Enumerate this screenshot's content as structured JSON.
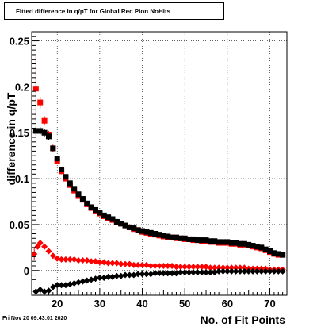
{
  "title": "Fitted difference in q/pT for Global Rec Pion NoHits",
  "footer": "Fri Nov 20 09:43:01 2020",
  "chart_data": {
    "type": "scatter",
    "title": "Fitted difference in q/pT for Global Rec Pion NoHits",
    "xlabel": "No. of Fit Points",
    "ylabel": "difference in q/pT",
    "xlim": [
      14,
      74
    ],
    "ylim": [
      -0.027,
      0.26
    ],
    "xticks": [
      20,
      30,
      40,
      50,
      60,
      70
    ],
    "xtick_labels": [
      "20",
      "30",
      "40",
      "50",
      "60",
      "70"
    ],
    "yticks": [
      0,
      0.05,
      0.1,
      0.15,
      0.2,
      0.25
    ],
    "ytick_labels": [
      "0",
      "0.05",
      "0.1",
      "0.15",
      "0.2",
      "0.25"
    ],
    "grid": true,
    "series": [
      {
        "color": "#ff0000",
        "marker": "square",
        "x": [
          15,
          16,
          17,
          18,
          19,
          20,
          21,
          22,
          23,
          24,
          25,
          26,
          27,
          28,
          29,
          30,
          31,
          32,
          33,
          34,
          35,
          36,
          37,
          38,
          39,
          40,
          41,
          42,
          43,
          44,
          45,
          46,
          47,
          48,
          49,
          50,
          51,
          52,
          53,
          54,
          55,
          56,
          57,
          58,
          59,
          60,
          61,
          62,
          63,
          64,
          65,
          66,
          67,
          68,
          69,
          70,
          71,
          72,
          73
        ],
        "y": [
          0.198,
          0.183,
          0.163,
          0.148,
          0.133,
          0.119,
          0.108,
          0.1,
          0.093,
          0.087,
          0.081,
          0.077,
          0.072,
          0.068,
          0.065,
          0.062,
          0.059,
          0.057,
          0.055,
          0.053,
          0.051,
          0.049,
          0.047,
          0.045,
          0.044,
          0.042,
          0.041,
          0.04,
          0.039,
          0.038,
          0.037,
          0.036,
          0.036,
          0.035,
          0.035,
          0.034,
          0.034,
          0.033,
          0.033,
          0.032,
          0.032,
          0.031,
          0.031,
          0.03,
          0.03,
          0.03,
          0.029,
          0.029,
          0.028,
          0.028,
          0.027,
          0.026,
          0.025,
          0.024,
          0.022,
          0.02,
          0.018,
          0.017,
          0.017
        ],
        "err": [
          0.035,
          0.006,
          0.005,
          0.004,
          0.004,
          0.003,
          0.003,
          0.003,
          0.003,
          0.003,
          0.002,
          0.002,
          0.002,
          0.002,
          0.002,
          0.002,
          0.002,
          0.002,
          0.002,
          0.002,
          0.002,
          0.002,
          0.002,
          0.002,
          0.002,
          0.002,
          0.002,
          0.002,
          0.002,
          0.002,
          0.002,
          0.002,
          0.002,
          0.002,
          0.002,
          0.002,
          0.002,
          0.002,
          0.002,
          0.002,
          0.002,
          0.002,
          0.002,
          0.002,
          0.002,
          0.002,
          0.002,
          0.002,
          0.002,
          0.002,
          0.002,
          0.002,
          0.002,
          0.002,
          0.002,
          0.002,
          0.002,
          0.002,
          0.002
        ]
      },
      {
        "color": "#000000",
        "marker": "square",
        "x": [
          15,
          16,
          17,
          18,
          19,
          20,
          21,
          22,
          23,
          24,
          25,
          26,
          27,
          28,
          29,
          30,
          31,
          32,
          33,
          34,
          35,
          36,
          37,
          38,
          39,
          40,
          41,
          42,
          43,
          44,
          45,
          46,
          47,
          48,
          49,
          50,
          51,
          52,
          53,
          54,
          55,
          56,
          57,
          58,
          59,
          60,
          61,
          62,
          63,
          64,
          65,
          66,
          67,
          68,
          69,
          70,
          71,
          72,
          73
        ],
        "y": [
          0.152,
          0.152,
          0.15,
          0.146,
          0.133,
          0.122,
          0.11,
          0.102,
          0.095,
          0.089,
          0.083,
          0.078,
          0.073,
          0.069,
          0.066,
          0.063,
          0.06,
          0.058,
          0.056,
          0.053,
          0.051,
          0.049,
          0.047,
          0.046,
          0.044,
          0.043,
          0.042,
          0.041,
          0.04,
          0.039,
          0.038,
          0.037,
          0.036,
          0.036,
          0.035,
          0.035,
          0.034,
          0.034,
          0.033,
          0.033,
          0.033,
          0.032,
          0.032,
          0.031,
          0.031,
          0.031,
          0.03,
          0.03,
          0.029,
          0.029,
          0.028,
          0.027,
          0.026,
          0.025,
          0.023,
          0.021,
          0.019,
          0.018,
          0.017
        ],
        "err": [
          0.005,
          0.004,
          0.004,
          0.004,
          0.003,
          0.003,
          0.003,
          0.003,
          0.003,
          0.002,
          0.002,
          0.002,
          0.002,
          0.002,
          0.002,
          0.002,
          0.002,
          0.002,
          0.002,
          0.002,
          0.002,
          0.002,
          0.002,
          0.002,
          0.002,
          0.002,
          0.002,
          0.002,
          0.002,
          0.002,
          0.002,
          0.002,
          0.002,
          0.002,
          0.002,
          0.002,
          0.002,
          0.002,
          0.002,
          0.002,
          0.002,
          0.002,
          0.002,
          0.002,
          0.002,
          0.002,
          0.002,
          0.002,
          0.002,
          0.002,
          0.002,
          0.002,
          0.002,
          0.002,
          0.002,
          0.002,
          0.002,
          0.002,
          0.002
        ]
      },
      {
        "color": "#ff0000",
        "marker": "diamond",
        "x": [
          14.6,
          15.4,
          16,
          17,
          18,
          19,
          20,
          21,
          22,
          23,
          24,
          25,
          26,
          27,
          28,
          29,
          30,
          31,
          32,
          33,
          34,
          35,
          36,
          37,
          38,
          39,
          40,
          41,
          42,
          43,
          44,
          45,
          46,
          47,
          48,
          49,
          50,
          51,
          52,
          53,
          54,
          55,
          56,
          57,
          58,
          59,
          60,
          61,
          62,
          63,
          64,
          65,
          66,
          67,
          68,
          69,
          70,
          71,
          72,
          73
        ],
        "y": [
          0.018,
          0.026,
          0.03,
          0.026,
          0.021,
          0.016,
          0.013,
          0.012,
          0.012,
          0.012,
          0.012,
          0.011,
          0.011,
          0.011,
          0.01,
          0.01,
          0.009,
          0.009,
          0.008,
          0.008,
          0.008,
          0.007,
          0.007,
          0.007,
          0.006,
          0.006,
          0.006,
          0.006,
          0.005,
          0.005,
          0.005,
          0.005,
          0.005,
          0.005,
          0.004,
          0.004,
          0.004,
          0.004,
          0.004,
          0.004,
          0.004,
          0.004,
          0.003,
          0.003,
          0.003,
          0.003,
          0.003,
          0.003,
          0.003,
          0.003,
          0.003,
          0.002,
          0.002,
          0.002,
          0.002,
          0.002,
          0.001,
          0.001,
          0.001,
          0.001
        ],
        "err": [
          0.006,
          0.003,
          0.003,
          0.002,
          0.002,
          0.001,
          0.001,
          0.001,
          0.001,
          0.001,
          0.001,
          0.001,
          0.001,
          0.001,
          0.001,
          0.001,
          0.001,
          0.001,
          0.001,
          0.001,
          0.001,
          0.001,
          0.001,
          0.001,
          0.001,
          0.001,
          0.001,
          0.001,
          0.001,
          0.001,
          0.001,
          0.001,
          0.001,
          0.001,
          0.001,
          0.001,
          0.001,
          0.001,
          0.001,
          0.001,
          0.001,
          0.001,
          0.001,
          0.001,
          0.001,
          0.001,
          0.001,
          0.001,
          0.001,
          0.001,
          0.001,
          0.001,
          0.001,
          0.001,
          0.001,
          0.001,
          0.001,
          0.001,
          0.001,
          0.001
        ]
      },
      {
        "color": "#000000",
        "marker": "diamond",
        "x": [
          15,
          16,
          17,
          18,
          19,
          20,
          21,
          22,
          23,
          24,
          25,
          26,
          27,
          28,
          29,
          30,
          31,
          32,
          33,
          34,
          35,
          36,
          37,
          38,
          39,
          40,
          41,
          42,
          43,
          44,
          45,
          46,
          47,
          48,
          49,
          50,
          51,
          52,
          53,
          54,
          55,
          56,
          57,
          58,
          59,
          60,
          61,
          62,
          63,
          64,
          65,
          66,
          67,
          68,
          69,
          70,
          71,
          72,
          73
        ],
        "y": [
          -0.023,
          -0.021,
          -0.023,
          -0.022,
          -0.018,
          -0.016,
          -0.016,
          -0.016,
          -0.015,
          -0.014,
          -0.013,
          -0.012,
          -0.011,
          -0.01,
          -0.009,
          -0.008,
          -0.008,
          -0.007,
          -0.007,
          -0.006,
          -0.006,
          -0.005,
          -0.005,
          -0.005,
          -0.004,
          -0.004,
          -0.004,
          -0.004,
          -0.003,
          -0.003,
          -0.003,
          -0.003,
          -0.003,
          -0.003,
          -0.002,
          -0.002,
          -0.002,
          -0.002,
          -0.002,
          -0.002,
          -0.002,
          -0.002,
          -0.002,
          -0.001,
          -0.001,
          -0.001,
          -0.001,
          -0.001,
          -0.001,
          -0.001,
          -0.001,
          -0.001,
          -0.001,
          -0.001,
          -0.001,
          -0.001,
          -0.001,
          -0.001,
          -0.001
        ],
        "err": [
          0.002,
          0.002,
          0.002,
          0.002,
          0.001,
          0.001,
          0.001,
          0.001,
          0.001,
          0.001,
          0.001,
          0.001,
          0.001,
          0.001,
          0.001,
          0.001,
          0.001,
          0.001,
          0.001,
          0.001,
          0.001,
          0.001,
          0.001,
          0.001,
          0.001,
          0.001,
          0.001,
          0.001,
          0.001,
          0.001,
          0.001,
          0.001,
          0.001,
          0.001,
          0.001,
          0.001,
          0.001,
          0.001,
          0.001,
          0.001,
          0.001,
          0.001,
          0.001,
          0.001,
          0.001,
          0.001,
          0.001,
          0.001,
          0.001,
          0.001,
          0.001,
          0.001,
          0.001,
          0.001,
          0.001,
          0.001,
          0.001,
          0.001,
          0.001
        ]
      }
    ]
  }
}
